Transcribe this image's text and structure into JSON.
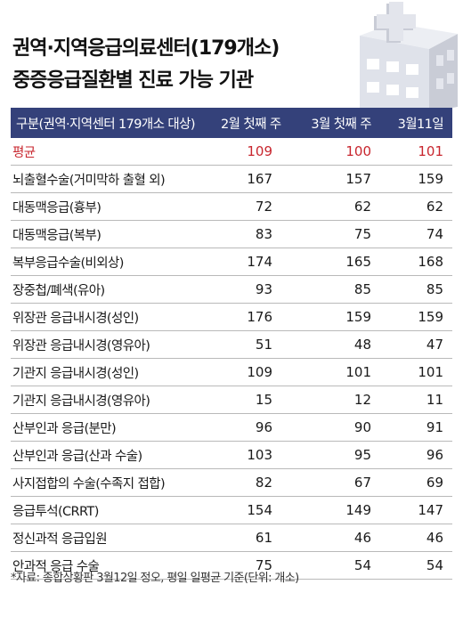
{
  "header": {
    "title_line1": "권역·지역응급의료센터(179개소)",
    "title_line2": "중증응급질환별 진료 가능 기관"
  },
  "colors": {
    "header_bg": "#34417a",
    "header_text": "#ffffff",
    "highlight": "#c8262e",
    "divider": "#b9b9b9"
  },
  "icons": {
    "decor": "hospital-building-icon"
  },
  "chart_data": {
    "type": "table",
    "columns": [
      "구분(권역·지역센터 179개소 대상)",
      "2월 첫째 주",
      "3월 첫째 주",
      "3월11일"
    ],
    "rows": [
      {
        "label": "평균",
        "values": [
          109,
          100,
          101
        ]
      },
      {
        "label": "뇌출혈수술(거미막하 출혈 외)",
        "values": [
          167,
          157,
          159
        ]
      },
      {
        "label": "대동맥응급(흉부)",
        "values": [
          72,
          62,
          62
        ]
      },
      {
        "label": "대동맥응급(복부)",
        "values": [
          83,
          75,
          74
        ]
      },
      {
        "label": "복부응급수술(비외상)",
        "values": [
          174,
          165,
          168
        ]
      },
      {
        "label": "장중첩/폐색(유아)",
        "values": [
          93,
          85,
          85
        ]
      },
      {
        "label": "위장관 응급내시경(성인)",
        "values": [
          176,
          159,
          159
        ]
      },
      {
        "label": "위장관 응급내시경(영유아)",
        "values": [
          51,
          48,
          47
        ]
      },
      {
        "label": "기관지 응급내시경(성인)",
        "values": [
          109,
          101,
          101
        ]
      },
      {
        "label": "기관지 응급내시경(영유아)",
        "values": [
          15,
          12,
          11
        ]
      },
      {
        "label": "산부인과 응급(분만)",
        "values": [
          96,
          90,
          91
        ]
      },
      {
        "label": "산부인과 응급(산과 수술)",
        "values": [
          103,
          95,
          96
        ]
      },
      {
        "label": "사지접합의 수술(수족지 접합)",
        "values": [
          82,
          67,
          69
        ]
      },
      {
        "label": "응급투석(CRRT)",
        "values": [
          154,
          149,
          147
        ]
      },
      {
        "label": "정신과적 응급입원",
        "values": [
          61,
          46,
          46
        ]
      },
      {
        "label": "안과적 응급 수술",
        "values": [
          75,
          54,
          54
        ]
      }
    ]
  },
  "footnote": "*자료: 종합상황판 3월12일 정오, 평일 일평균 기준(단위: 개소)"
}
